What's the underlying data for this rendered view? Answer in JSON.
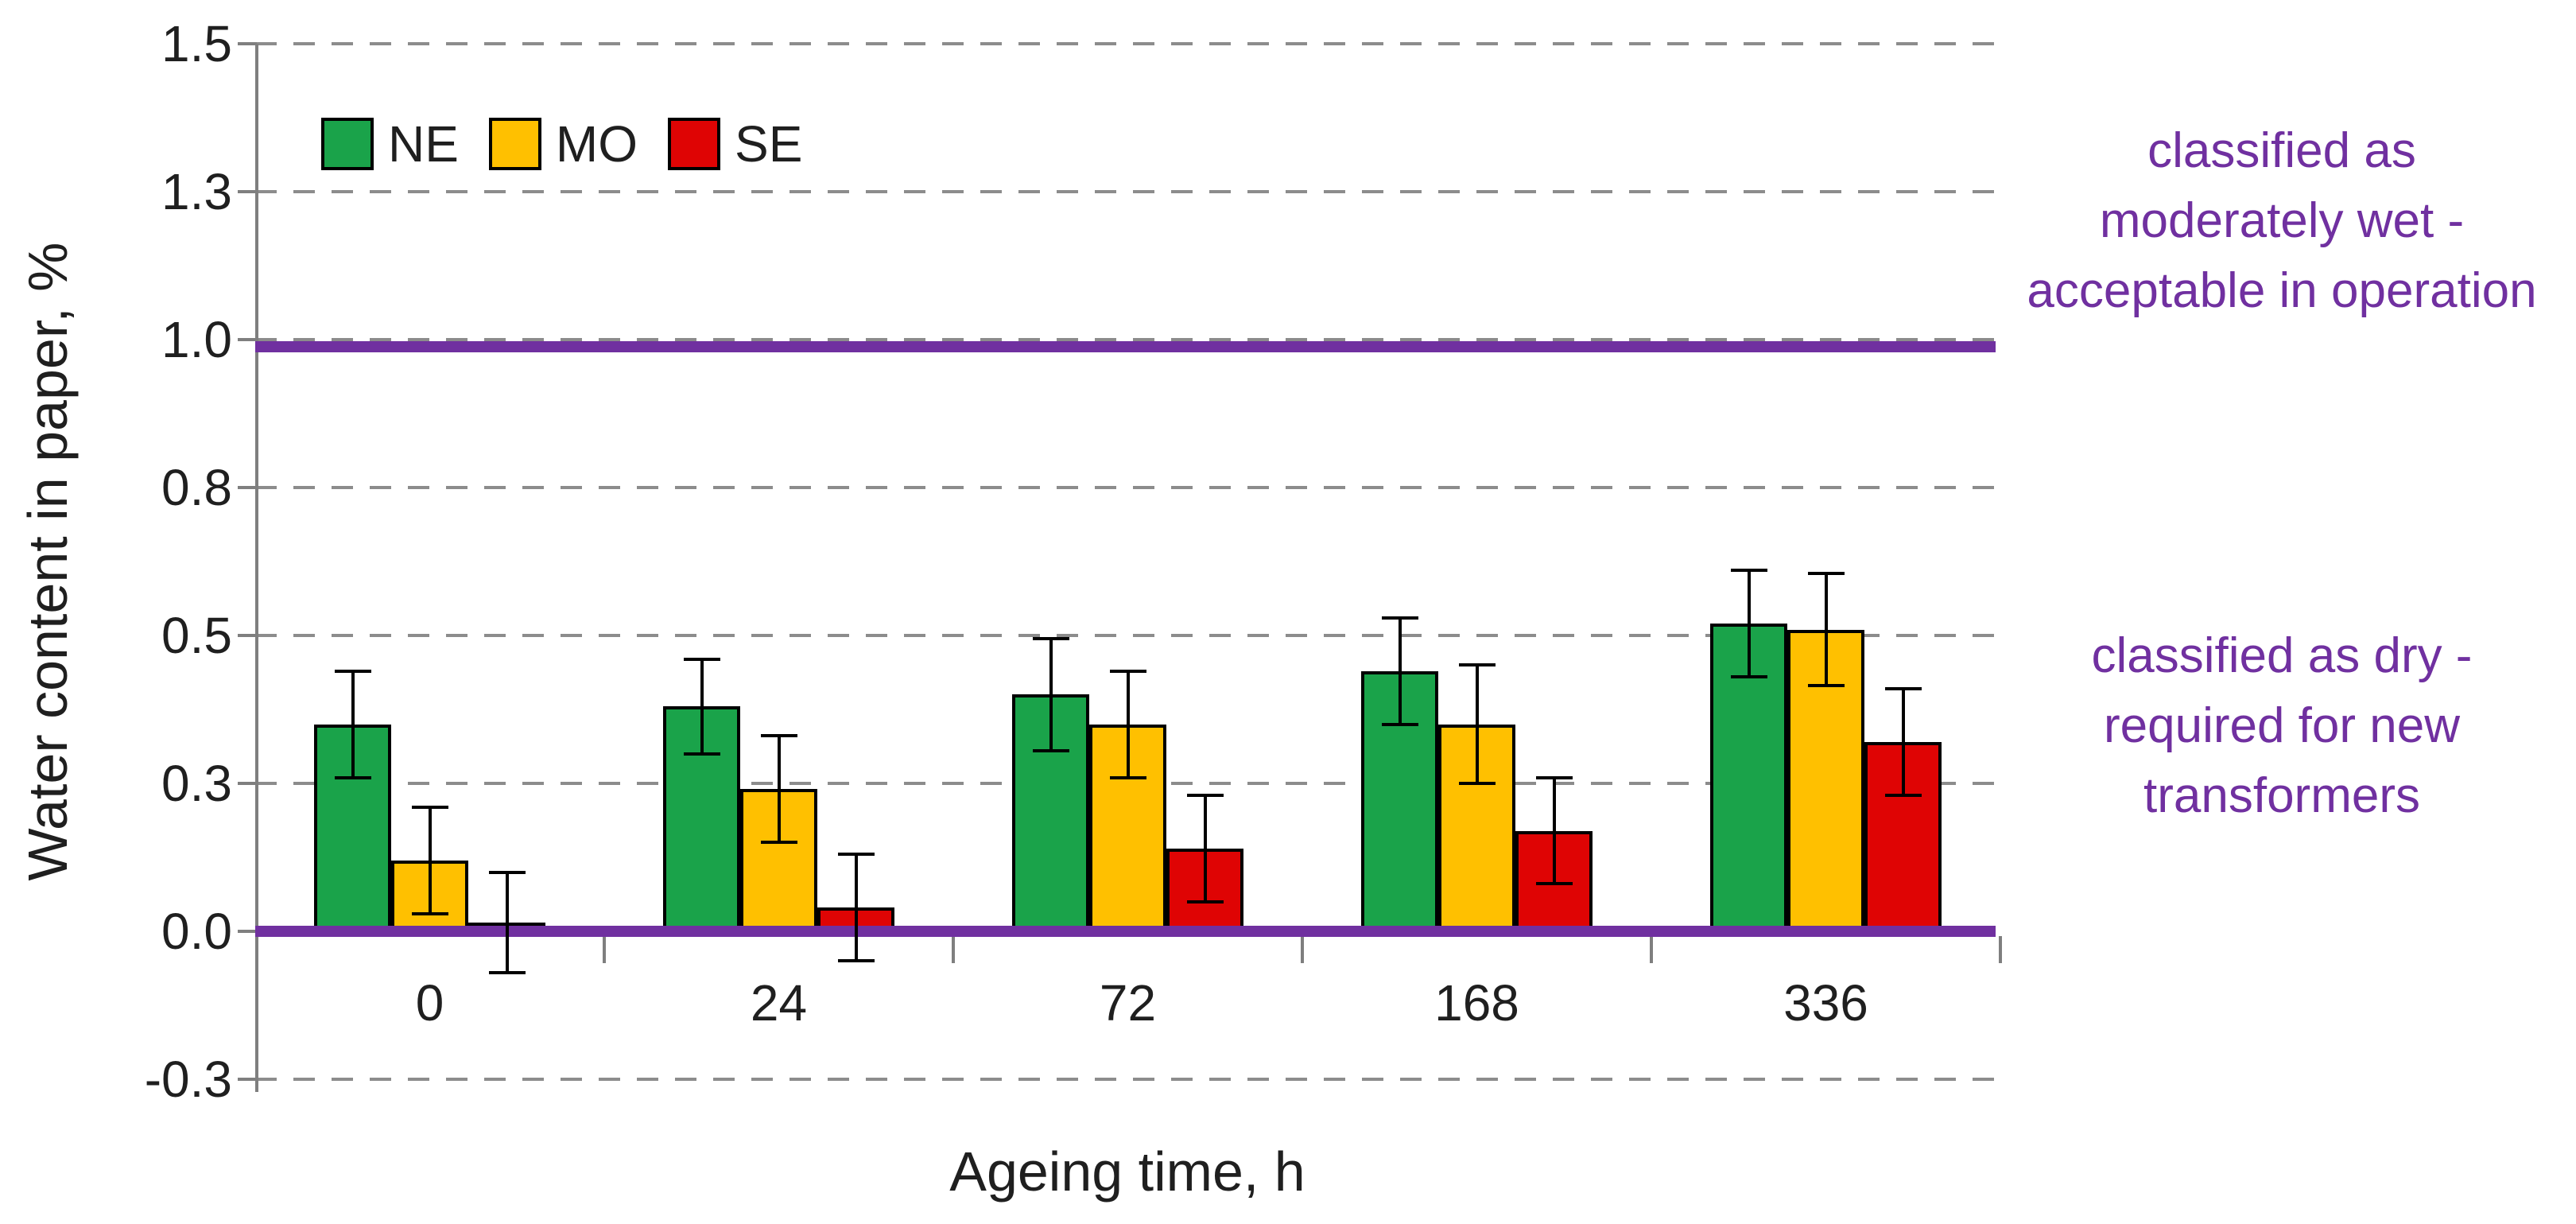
{
  "chart_data": {
    "type": "bar",
    "title": "",
    "xlabel": "Ageing time, h",
    "ylabel": "Water content in paper, %",
    "categories": [
      "0",
      "24",
      "72",
      "168",
      "336"
    ],
    "series": [
      {
        "name": "NE",
        "color": "#1AA34A",
        "values": [
          0.35,
          0.38,
          0.4,
          0.44,
          0.52
        ],
        "errors": [
          0.09,
          0.08,
          0.095,
          0.09,
          0.09
        ]
      },
      {
        "name": "MO",
        "color": "#FFC000",
        "values": [
          0.12,
          0.24,
          0.35,
          0.35,
          0.51
        ],
        "errors": [
          0.09,
          0.09,
          0.09,
          0.1,
          0.095
        ]
      },
      {
        "name": "SE",
        "color": "#DF0404",
        "values": [
          0.015,
          0.04,
          0.14,
          0.17,
          0.32
        ],
        "errors": [
          0.085,
          0.09,
          0.09,
          0.09,
          0.09
        ]
      }
    ],
    "ylim": [
      -0.25,
      1.5
    ],
    "y_ticks": [
      {
        "v": 1.5,
        "label": "1.5"
      },
      {
        "v": 1.25,
        "label": "1.3"
      },
      {
        "v": 1.0,
        "label": "1.0"
      },
      {
        "v": 0.75,
        "label": "0.8"
      },
      {
        "v": 0.5,
        "label": "0.5"
      },
      {
        "v": 0.25,
        "label": "0.3"
      },
      {
        "v": 0.0,
        "label": "0.0"
      },
      {
        "v": -0.25,
        "label": "-0.3"
      }
    ],
    "grid": "horizontal-dashed",
    "legend_position": "top-left-inside",
    "error_bars": true,
    "thresholds": [
      {
        "value": 1.0,
        "color": "#7030A0"
      },
      {
        "value": 0.0,
        "color": "#7030A0"
      }
    ]
  },
  "annotations": [
    {
      "text": "classified as\nmoderately wet -\nacceptable in operation",
      "color": "#7030A0"
    },
    {
      "text": "classified as dry -\nrequired for new\ntransformers",
      "color": "#7030A0"
    }
  ],
  "colors": {
    "gridline": "#8c8c8c",
    "axis": "#7f7f7f",
    "error_bar": "#000000",
    "threshold_line": "#7030A0",
    "annotation_text": "#7030A0"
  }
}
